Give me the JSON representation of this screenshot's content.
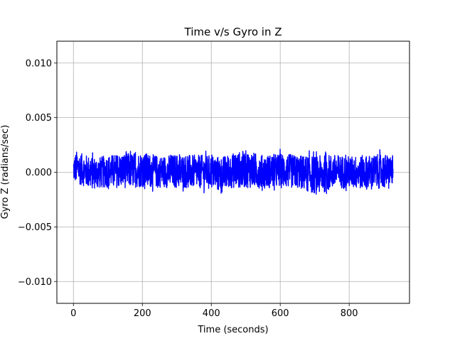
{
  "chart_data": {
    "type": "line",
    "title": "Time v/s Gyro in Z",
    "xlabel": "Time (seconds)",
    "ylabel": "Gyro Z (radians/sec)",
    "xlim": [
      -48,
      975
    ],
    "ylim": [
      -0.012,
      0.012
    ],
    "xticks": [
      0,
      200,
      400,
      600,
      800
    ],
    "xtick_labels": [
      "0",
      "200",
      "400",
      "600",
      "800"
    ],
    "yticks": [
      -0.01,
      -0.005,
      0.0,
      0.005,
      0.01
    ],
    "ytick_labels": [
      "−0.010",
      "−0.005",
      "0.000",
      "0.005",
      "0.010"
    ],
    "grid": true,
    "series": [
      {
        "color": "#0000ff",
        "x_range": [
          0,
          928
        ],
        "envelope": {
          "x": [
            0,
            10,
            25,
            50,
            75,
            100,
            150,
            200,
            250,
            300,
            350,
            400,
            430,
            450,
            500,
            550,
            600,
            650,
            710,
            750,
            800,
            850,
            900,
            928
          ],
          "upper": [
            0.0017,
            0.0024,
            0.0021,
            0.0019,
            0.0018,
            0.002,
            0.0022,
            0.0023,
            0.0019,
            0.0021,
            0.002,
            0.002,
            0.0019,
            0.0021,
            0.0025,
            0.002,
            0.0022,
            0.002,
            0.002,
            0.0021,
            0.0019,
            0.002,
            0.0021,
            0.0019
          ],
          "lower": [
            -0.0012,
            -0.0015,
            -0.0016,
            -0.002,
            -0.0019,
            -0.0018,
            -0.0019,
            -0.0018,
            -0.0018,
            -0.0019,
            -0.0019,
            -0.0019,
            -0.0024,
            -0.0019,
            -0.0019,
            -0.0019,
            -0.0019,
            -0.0019,
            -0.0026,
            -0.002,
            -0.0019,
            -0.002,
            -0.0019,
            -0.0015
          ]
        }
      }
    ]
  }
}
